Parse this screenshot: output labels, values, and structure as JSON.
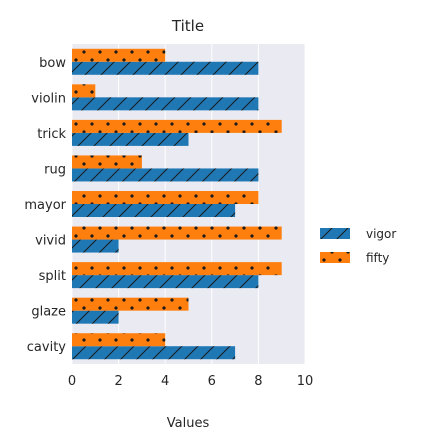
{
  "chart_data": {
    "type": "bar",
    "orientation": "horizontal",
    "title": "Title",
    "xlabel": "Values",
    "ylabel": "",
    "xlim": [
      0,
      10
    ],
    "xticks": [
      0,
      2,
      4,
      6,
      8,
      10
    ],
    "grid": true,
    "legend_position": "right",
    "categories": [
      "bow",
      "violin",
      "trick",
      "rug",
      "mayor",
      "vivid",
      "split",
      "glaze",
      "cavity"
    ],
    "series": [
      {
        "name": "vigor",
        "color": "#1f77b4",
        "hatch": "diagonal",
        "values": [
          8,
          8,
          5,
          8,
          7,
          2,
          8,
          2,
          7
        ]
      },
      {
        "name": "fifty",
        "color": "#ff7f0e",
        "hatch": "dots",
        "values": [
          4,
          1,
          9,
          3,
          8,
          9,
          9,
          5,
          4
        ]
      }
    ],
    "colors": {
      "plot_background": "#eaeaf2",
      "grid": "#ffffff"
    }
  }
}
